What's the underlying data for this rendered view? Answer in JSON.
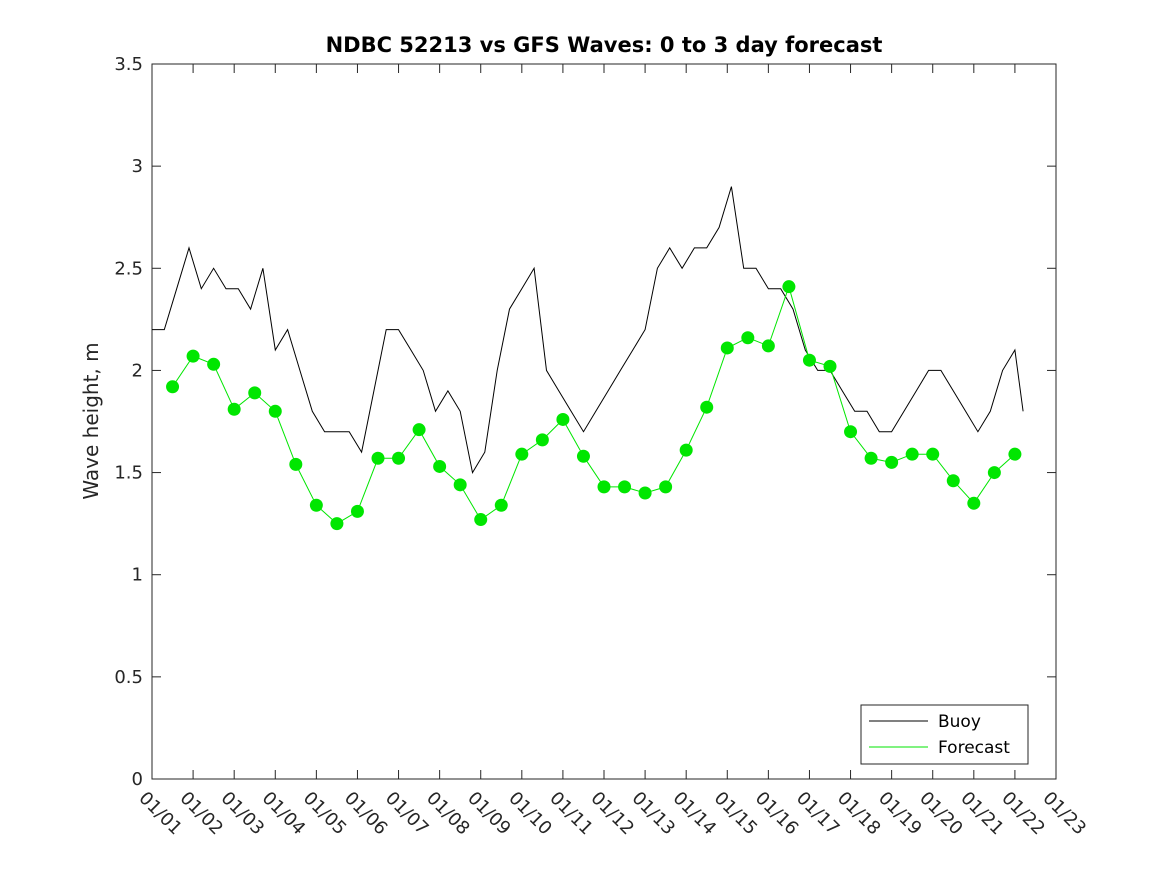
{
  "chart_data": {
    "type": "line",
    "title": "NDBC 52213 vs GFS Waves: 0 to 3 day forecast",
    "xlabel": "",
    "ylabel": "Wave height, m",
    "xlim": [
      0,
      22
    ],
    "ylim": [
      0,
      3.5
    ],
    "yticks": [
      0,
      0.5,
      1,
      1.5,
      2,
      2.5,
      3,
      3.5
    ],
    "ytick_labels": [
      "0",
      "0.5",
      "1",
      "1.5",
      "2",
      "2.5",
      "3",
      "3.5"
    ],
    "xticks": [
      0,
      1,
      2,
      3,
      4,
      5,
      6,
      7,
      8,
      9,
      10,
      11,
      12,
      13,
      14,
      15,
      16,
      17,
      18,
      19,
      20,
      21,
      22
    ],
    "xtick_labels": [
      "01/01",
      "01/02",
      "01/03",
      "01/04",
      "01/05",
      "01/06",
      "01/07",
      "01/08",
      "01/09",
      "01/10",
      "01/11",
      "01/12",
      "01/13",
      "01/14",
      "01/15",
      "01/16",
      "01/17",
      "01/18",
      "01/19",
      "01/20",
      "01/21",
      "01/22",
      "01/23"
    ],
    "legend": {
      "location": "bottom-right",
      "entries": [
        "Buoy",
        "Forecast"
      ]
    },
    "colors": {
      "buoy": "#000000",
      "forecast": "#00e600",
      "axis": "#262626"
    },
    "series": [
      {
        "name": "Buoy",
        "color": "#000000",
        "x": [
          0,
          0.3,
          0.6,
          0.9,
          1.2,
          1.5,
          1.8,
          2.1,
          2.4,
          2.7,
          3.0,
          3.3,
          3.6,
          3.9,
          4.2,
          4.5,
          4.8,
          5.1,
          5.4,
          5.7,
          6.0,
          6.3,
          6.6,
          6.9,
          7.2,
          7.5,
          7.8,
          8.1,
          8.4,
          8.7,
          9.0,
          9.3,
          9.6,
          9.9,
          10.2,
          10.5,
          10.8,
          11.1,
          11.4,
          11.7,
          12.0,
          12.3,
          12.6,
          12.9,
          13.2,
          13.5,
          13.8,
          14.1,
          14.4,
          14.7,
          15.0,
          15.3,
          15.6,
          15.9,
          16.2,
          16.5,
          16.8,
          17.1,
          17.4,
          17.7,
          18.0,
          18.3,
          18.6,
          18.9,
          19.2,
          19.5,
          19.8,
          20.1,
          20.4,
          20.7,
          21.0,
          21.2
        ],
        "y": [
          2.2,
          2.2,
          2.4,
          2.6,
          2.4,
          2.5,
          2.4,
          2.4,
          2.3,
          2.5,
          2.1,
          2.2,
          2.0,
          1.8,
          1.7,
          1.7,
          1.7,
          1.6,
          1.9,
          2.2,
          2.2,
          2.1,
          2.0,
          1.8,
          1.9,
          1.8,
          1.5,
          1.6,
          2.0,
          2.3,
          2.4,
          2.5,
          2.0,
          1.9,
          1.8,
          1.7,
          1.8,
          1.9,
          2.0,
          2.1,
          2.2,
          2.5,
          2.6,
          2.5,
          2.6,
          2.6,
          2.7,
          2.9,
          2.5,
          2.5,
          2.4,
          2.4,
          2.3,
          2.1,
          2.0,
          2.0,
          1.9,
          1.8,
          1.8,
          1.7,
          1.7,
          1.8,
          1.9,
          2.0,
          2.0,
          1.9,
          1.8,
          1.7,
          1.8,
          2.0,
          2.1,
          1.8
        ]
      },
      {
        "name": "Forecast",
        "color": "#00e600",
        "x": [
          0.5,
          1.0,
          1.5,
          2.0,
          2.5,
          3.0,
          3.5,
          4.0,
          4.5,
          5.0,
          5.5,
          6.0,
          6.5,
          7.0,
          7.5,
          8.0,
          8.5,
          9.0,
          9.5,
          10.0,
          10.5,
          11.0,
          11.5,
          12.0,
          12.5,
          13.0,
          13.5,
          14.0,
          14.5,
          15.0,
          15.5,
          16.0,
          16.5,
          17.0,
          17.5,
          18.0,
          18.5,
          19.0,
          19.5,
          20.0,
          20.5,
          21.0
        ],
        "y": [
          1.92,
          2.07,
          2.03,
          1.81,
          1.89,
          1.8,
          1.54,
          1.34,
          1.25,
          1.31,
          1.57,
          1.57,
          1.71,
          1.53,
          1.44,
          1.27,
          1.34,
          1.59,
          1.66,
          1.76,
          1.58,
          1.43,
          1.43,
          1.4,
          1.43,
          1.61,
          1.82,
          2.11,
          2.16,
          2.12,
          2.41,
          2.05,
          2.02,
          1.7,
          1.57,
          1.55,
          1.59,
          1.59,
          1.46,
          1.35,
          1.5,
          1.59
        ]
      }
    ]
  }
}
